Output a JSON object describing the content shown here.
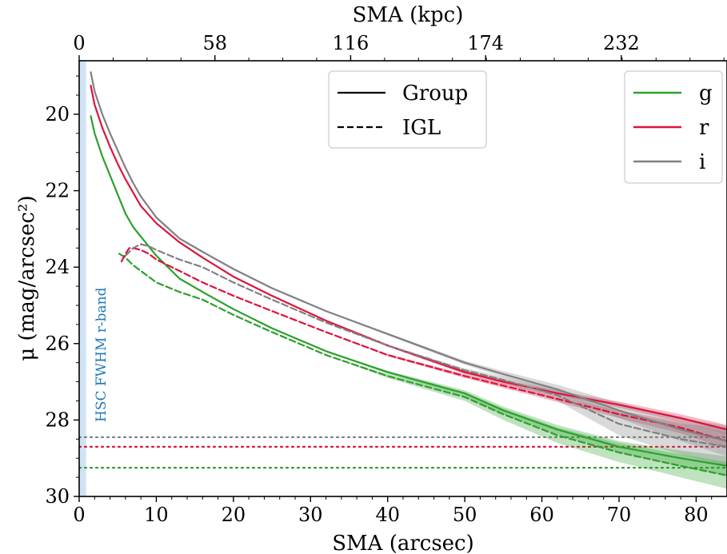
{
  "chart_data": {
    "type": "line",
    "xlabel": "SMA (arcsec)",
    "ylabel": "μ (mag/arcsec²)",
    "top_xlabel": "SMA (kpc)",
    "xlim": [
      0,
      84
    ],
    "ylim": [
      30,
      18.6
    ],
    "y_inverted": true,
    "xticks": [
      0,
      10,
      20,
      30,
      40,
      50,
      60,
      70,
      80
    ],
    "yticks": [
      20,
      22,
      24,
      26,
      28,
      30
    ],
    "top_ticks": [
      {
        "x": 0,
        "label": "0"
      },
      {
        "x": 17.6,
        "label": "58"
      },
      {
        "x": 35.2,
        "label": "116"
      },
      {
        "x": 52.7,
        "label": "174"
      },
      {
        "x": 70.3,
        "label": "232"
      }
    ],
    "fwhm_band": {
      "x0": 0.0,
      "x1": 0.9,
      "color": "#cfe3f5",
      "label": "HSC FWHM r-band",
      "label_color": "#1f77b4"
    },
    "legend_linestyle": {
      "position": "top-center",
      "entries": [
        {
          "label": "Group",
          "dash": "solid"
        },
        {
          "label": "IGL",
          "dash": "dashed"
        }
      ]
    },
    "legend_band": {
      "position": "top-right",
      "entries": [
        {
          "label": "g",
          "color": "#2ca02c"
        },
        {
          "label": "r",
          "color": "#dc143c"
        },
        {
          "label": "i",
          "color": "#808080"
        }
      ]
    },
    "limits": [
      {
        "band": "i",
        "y": 28.45,
        "color": "#808080"
      },
      {
        "band": "r",
        "y": 28.7,
        "color": "#dc143c"
      },
      {
        "band": "g",
        "y": 29.25,
        "color": "#2ca02c"
      }
    ],
    "series": [
      {
        "name": "g",
        "kind": "Group",
        "color": "#2ca02c",
        "dash": "solid",
        "x": [
          1.5,
          2,
          3,
          4,
          5,
          6,
          7,
          8,
          10,
          13,
          16,
          20,
          25,
          32,
          40,
          50,
          55,
          62,
          70,
          78,
          84
        ],
        "y": [
          20.05,
          20.5,
          21.1,
          21.6,
          22.1,
          22.6,
          22.95,
          23.2,
          23.7,
          24.3,
          24.65,
          25.1,
          25.6,
          26.2,
          26.75,
          27.3,
          27.75,
          28.25,
          28.7,
          29.0,
          29.2
        ],
        "band_err": [
          0,
          0,
          0,
          0,
          0,
          0,
          0,
          0,
          0,
          0,
          0,
          0,
          0,
          0,
          0.04,
          0.08,
          0.1,
          0.12,
          0.15,
          0.2,
          0.25
        ]
      },
      {
        "name": "g",
        "kind": "IGL",
        "color": "#2ca02c",
        "dash": "dashed",
        "x": [
          5.2,
          6,
          7,
          8,
          10,
          13,
          16,
          20,
          25,
          32,
          40,
          50,
          55,
          62,
          70,
          78,
          84
        ],
        "y": [
          23.65,
          23.75,
          23.95,
          24.1,
          24.4,
          24.65,
          24.85,
          25.25,
          25.7,
          26.3,
          26.85,
          27.4,
          27.85,
          28.4,
          28.85,
          29.2,
          29.45
        ],
        "band_err": [
          0,
          0,
          0,
          0,
          0,
          0,
          0,
          0,
          0,
          0,
          0.05,
          0.1,
          0.15,
          0.2,
          0.25,
          0.3,
          0.35
        ]
      },
      {
        "name": "r",
        "kind": "Group",
        "color": "#dc143c",
        "dash": "solid",
        "x": [
          1.5,
          2,
          3,
          4,
          5,
          6,
          7,
          8,
          10,
          13,
          16,
          20,
          25,
          32,
          40,
          50,
          55,
          62,
          70,
          78,
          84
        ],
        "y": [
          19.25,
          19.75,
          20.35,
          20.85,
          21.3,
          21.7,
          22.05,
          22.4,
          22.85,
          23.35,
          23.75,
          24.25,
          24.75,
          25.4,
          26.05,
          26.75,
          27.0,
          27.3,
          27.6,
          27.95,
          28.25
        ],
        "band_err": [
          0,
          0,
          0,
          0,
          0,
          0,
          0,
          0,
          0,
          0,
          0,
          0,
          0,
          0,
          0.03,
          0.05,
          0.06,
          0.07,
          0.08,
          0.1,
          0.12
        ]
      },
      {
        "name": "r",
        "kind": "IGL",
        "color": "#dc143c",
        "dash": "dashed",
        "x": [
          5.5,
          6,
          6.5,
          7,
          8,
          9,
          10,
          13,
          16,
          20,
          25,
          32,
          40,
          50,
          55,
          62,
          70,
          78,
          84
        ],
        "y": [
          23.85,
          23.65,
          23.5,
          23.5,
          23.55,
          23.65,
          23.8,
          24.1,
          24.4,
          24.75,
          25.15,
          25.7,
          26.3,
          26.85,
          27.1,
          27.45,
          27.85,
          28.2,
          28.55
        ],
        "band_err": [
          0,
          0,
          0,
          0,
          0,
          0,
          0,
          0,
          0,
          0,
          0,
          0,
          0.03,
          0.05,
          0.06,
          0.08,
          0.1,
          0.15,
          0.2
        ]
      },
      {
        "name": "i",
        "kind": "Group",
        "color": "#808080",
        "dash": "solid",
        "x": [
          1.5,
          2,
          3,
          4,
          5,
          6,
          7,
          8,
          10,
          13,
          16,
          20,
          25,
          32,
          40,
          50,
          55,
          62,
          70,
          78,
          84
        ],
        "y": [
          18.9,
          19.4,
          20.0,
          20.5,
          20.95,
          21.4,
          21.8,
          22.15,
          22.7,
          23.25,
          23.6,
          24.05,
          24.55,
          25.15,
          25.75,
          26.5,
          26.8,
          27.2,
          27.75,
          28.25,
          28.55
        ],
        "band_err": [
          0,
          0,
          0,
          0,
          0,
          0,
          0,
          0,
          0,
          0,
          0,
          0,
          0,
          0,
          0.03,
          0.05,
          0.08,
          0.12,
          0.2,
          0.3,
          0.4
        ]
      },
      {
        "name": "i",
        "kind": "IGL",
        "color": "#808080",
        "dash": "dashed",
        "x": [
          6,
          7,
          8,
          9,
          10,
          13,
          16,
          20,
          25,
          32,
          40,
          50,
          55,
          62,
          70,
          78,
          84
        ],
        "y": [
          23.7,
          23.5,
          23.4,
          23.45,
          23.55,
          23.8,
          24.0,
          24.4,
          24.85,
          25.45,
          26.05,
          26.7,
          26.95,
          27.35,
          28.1,
          28.5,
          28.7
        ],
        "band_err": [
          0,
          0,
          0,
          0,
          0,
          0,
          0,
          0,
          0,
          0,
          0,
          0.05,
          0.08,
          0.15,
          0.3,
          0.4,
          0.5
        ]
      }
    ]
  }
}
